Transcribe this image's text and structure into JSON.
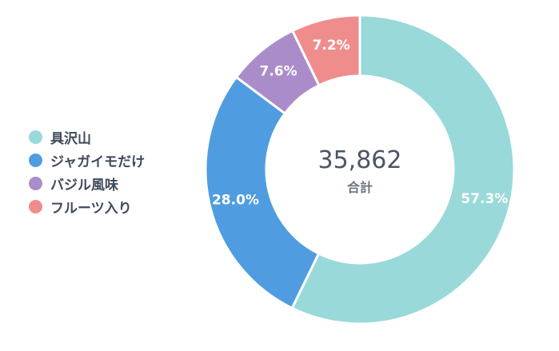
{
  "chart_data": {
    "type": "pie",
    "variant": "donut",
    "legend_placement": "left",
    "center": {
      "value": "35,862",
      "label": "合計"
    },
    "slices": [
      {
        "name": "具沢山",
        "value": 57.3,
        "label": "57.3%",
        "color": "#99d9d9"
      },
      {
        "name": "ジャガイモだけ",
        "value": 28.0,
        "label": "28.0%",
        "color": "#4f9de0"
      },
      {
        "name": "バジル風味",
        "value": 7.6,
        "label": "7.6%",
        "color": "#ab8ccb"
      },
      {
        "name": "フルーツ入り",
        "value": 7.2,
        "label": "7.2%",
        "color": "#ef8d8d"
      }
    ],
    "start_angle_deg": 0,
    "direction": "clockwise"
  }
}
